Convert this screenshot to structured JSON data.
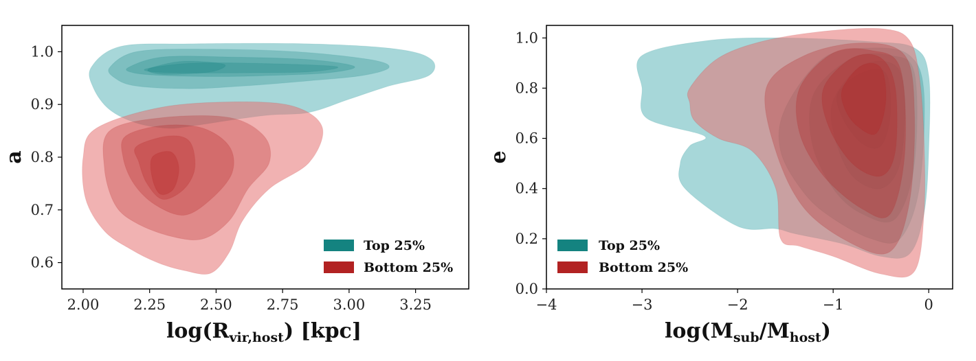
{
  "chart_data": [
    {
      "type": "contour",
      "title": "",
      "xlabel": "log(R_vir,host) [kpc]",
      "ylabel": "a",
      "xlim": [
        1.92,
        3.45
      ],
      "ylim": [
        0.55,
        1.05
      ],
      "xticks": [
        2.0,
        2.25,
        2.5,
        2.75,
        3.0,
        3.25
      ],
      "xtick_labels": [
        "2.00",
        "2.25",
        "2.50",
        "2.75",
        "3.00",
        "3.25"
      ],
      "yticks": [
        0.6,
        0.7,
        0.8,
        0.9,
        1.0
      ],
      "ytick_labels": [
        "0.6",
        "0.7",
        "0.8",
        "0.9",
        "1.0"
      ],
      "grid": false,
      "legend_position": "bottom-right",
      "series": [
        {
          "name": "Top 25%",
          "color": "#148380",
          "fill": "#5fb6b9",
          "levels": [
            [
              [
                2.03,
                0.97
              ],
              [
                2.14,
                1.01
              ],
              [
                2.4,
                1.015
              ],
              [
                2.85,
                1.015
              ],
              [
                3.18,
                1.005
              ],
              [
                3.31,
                0.985
              ],
              [
                3.3,
                0.955
              ],
              [
                3.15,
                0.935
              ],
              [
                3.0,
                0.91
              ],
              [
                2.85,
                0.885
              ],
              [
                2.7,
                0.88
              ],
              [
                2.55,
                0.87
              ],
              [
                2.42,
                0.86
              ],
              [
                2.32,
                0.855
              ],
              [
                2.2,
                0.865
              ],
              [
                2.1,
                0.89
              ],
              [
                2.04,
                0.93
              ]
            ],
            [
              [
                2.1,
                0.97
              ],
              [
                2.2,
                1.0
              ],
              [
                2.45,
                1.005
              ],
              [
                2.8,
                1.0
              ],
              [
                3.08,
                0.985
              ],
              [
                3.15,
                0.97
              ],
              [
                3.05,
                0.955
              ],
              [
                2.85,
                0.945
              ],
              [
                2.6,
                0.935
              ],
              [
                2.4,
                0.93
              ],
              [
                2.2,
                0.935
              ],
              [
                2.12,
                0.95
              ]
            ],
            [
              [
                2.17,
                0.97
              ],
              [
                2.3,
                0.99
              ],
              [
                2.55,
                0.99
              ],
              [
                2.85,
                0.985
              ],
              [
                3.02,
                0.972
              ],
              [
                2.92,
                0.96
              ],
              [
                2.7,
                0.955
              ],
              [
                2.5,
                0.953
              ],
              [
                2.3,
                0.955
              ],
              [
                2.19,
                0.96
              ]
            ],
            [
              [
                2.24,
                0.968
              ],
              [
                2.4,
                0.978
              ],
              [
                2.65,
                0.978
              ],
              [
                2.95,
                0.972
              ],
              [
                2.85,
                0.962
              ],
              [
                2.6,
                0.96
              ],
              [
                2.38,
                0.96
              ],
              [
                2.26,
                0.962
              ]
            ],
            [
              [
                2.26,
                0.97
              ],
              [
                2.38,
                0.982
              ],
              [
                2.53,
                0.976
              ],
              [
                2.48,
                0.962
              ],
              [
                2.32,
                0.957
              ],
              [
                2.25,
                0.962
              ]
            ]
          ]
        },
        {
          "name": "Bottom 25%",
          "color": "#b22222",
          "fill": "#e57373",
          "levels": [
            [
              [
                2.05,
                0.855
              ],
              [
                2.3,
                0.895
              ],
              [
                2.6,
                0.905
              ],
              [
                2.8,
                0.895
              ],
              [
                2.9,
                0.855
              ],
              [
                2.85,
                0.79
              ],
              [
                2.7,
                0.74
              ],
              [
                2.6,
                0.68
              ],
              [
                2.55,
                0.62
              ],
              [
                2.48,
                0.58
              ],
              [
                2.38,
                0.585
              ],
              [
                2.28,
                0.6
              ],
              [
                2.18,
                0.625
              ],
              [
                2.08,
                0.66
              ],
              [
                2.01,
                0.72
              ],
              [
                2.0,
                0.8
              ]
            ],
            [
              [
                2.1,
                0.85
              ],
              [
                2.3,
                0.875
              ],
              [
                2.55,
                0.875
              ],
              [
                2.68,
                0.84
              ],
              [
                2.7,
                0.79
              ],
              [
                2.62,
                0.74
              ],
              [
                2.55,
                0.68
              ],
              [
                2.45,
                0.645
              ],
              [
                2.33,
                0.65
              ],
              [
                2.2,
                0.675
              ],
              [
                2.12,
                0.71
              ],
              [
                2.08,
                0.78
              ]
            ],
            [
              [
                2.16,
                0.84
              ],
              [
                2.3,
                0.86
              ],
              [
                2.45,
                0.855
              ],
              [
                2.55,
                0.82
              ],
              [
                2.56,
                0.77
              ],
              [
                2.48,
                0.72
              ],
              [
                2.38,
                0.69
              ],
              [
                2.27,
                0.71
              ],
              [
                2.19,
                0.75
              ],
              [
                2.15,
                0.8
              ]
            ],
            [
              [
                2.2,
                0.82
              ],
              [
                2.32,
                0.84
              ],
              [
                2.4,
                0.83
              ],
              [
                2.42,
                0.78
              ],
              [
                2.38,
                0.74
              ],
              [
                2.3,
                0.72
              ],
              [
                2.24,
                0.75
              ],
              [
                2.21,
                0.79
              ]
            ],
            [
              [
                2.26,
                0.8
              ],
              [
                2.33,
                0.81
              ],
              [
                2.36,
                0.78
              ],
              [
                2.34,
                0.74
              ],
              [
                2.29,
                0.73
              ],
              [
                2.26,
                0.76
              ]
            ]
          ]
        }
      ]
    },
    {
      "type": "contour",
      "title": "",
      "xlabel": "log(M_sub/M_host)",
      "ylabel": "e",
      "xlim": [
        -4.0,
        0.25
      ],
      "ylim": [
        0.0,
        1.05
      ],
      "xticks": [
        -4,
        -3,
        -2,
        -1,
        0
      ],
      "xtick_labels": [
        "−4",
        "−3",
        "−2",
        "−1",
        "0"
      ],
      "yticks": [
        0.0,
        0.2,
        0.4,
        0.6,
        0.8,
        1.0
      ],
      "ytick_labels": [
        "0.0",
        "0.2",
        "0.4",
        "0.6",
        "0.8",
        "1.0"
      ],
      "grid": false,
      "legend_position": "bottom-left",
      "series": [
        {
          "name": "Top 25%",
          "color": "#148380",
          "fill": "#5fb6b9",
          "levels": [
            [
              [
                -3.0,
                0.93
              ],
              [
                -2.3,
                0.99
              ],
              [
                -1.5,
                1.0
              ],
              [
                -0.6,
                0.985
              ],
              [
                -0.15,
                0.96
              ],
              [
                0.0,
                0.85
              ],
              [
                0.0,
                0.55
              ],
              [
                -0.05,
                0.3
              ],
              [
                -0.2,
                0.14
              ],
              [
                -0.5,
                0.13
              ],
              [
                -0.9,
                0.18
              ],
              [
                -1.4,
                0.22
              ],
              [
                -1.6,
                0.24
              ],
              [
                -2.0,
                0.25
              ],
              [
                -2.55,
                0.4
              ],
              [
                -2.6,
                0.5
              ],
              [
                -2.5,
                0.57
              ],
              [
                -2.35,
                0.61
              ],
              [
                -2.95,
                0.68
              ],
              [
                -3.0,
                0.8
              ]
            ],
            [
              [
                -1.5,
                0.72
              ],
              [
                -1.1,
                0.92
              ],
              [
                -0.6,
                0.96
              ],
              [
                -0.2,
                0.93
              ],
              [
                -0.05,
                0.78
              ],
              [
                -0.1,
                0.4
              ],
              [
                -0.3,
                0.2
              ],
              [
                -0.6,
                0.2
              ],
              [
                -1.0,
                0.28
              ],
              [
                -1.3,
                0.38
              ],
              [
                -1.55,
                0.55
              ]
            ],
            [
              [
                -1.2,
                0.78
              ],
              [
                -0.8,
                0.92
              ],
              [
                -0.4,
                0.93
              ],
              [
                -0.15,
                0.86
              ],
              [
                -0.15,
                0.5
              ],
              [
                -0.35,
                0.28
              ],
              [
                -0.7,
                0.3
              ],
              [
                -1.0,
                0.4
              ],
              [
                -1.22,
                0.58
              ]
            ],
            [
              [
                -1.0,
                0.75
              ],
              [
                -0.7,
                0.89
              ],
              [
                -0.35,
                0.89
              ],
              [
                -0.25,
                0.75
              ],
              [
                -0.3,
                0.5
              ],
              [
                -0.5,
                0.4
              ],
              [
                -0.8,
                0.45
              ],
              [
                -0.98,
                0.6
              ]
            ],
            [
              [
                -0.95,
                0.78
              ],
              [
                -0.7,
                0.86
              ],
              [
                -0.45,
                0.86
              ],
              [
                -0.4,
                0.7
              ],
              [
                -0.5,
                0.57
              ],
              [
                -0.7,
                0.58
              ],
              [
                -0.9,
                0.68
              ]
            ]
          ]
        },
        {
          "name": "Bottom 25%",
          "color": "#b22222",
          "fill": "#e57373",
          "levels": [
            [
              [
                -2.5,
                0.8
              ],
              [
                -2.2,
                0.92
              ],
              [
                -1.7,
                0.99
              ],
              [
                -1.0,
                1.03
              ],
              [
                -0.45,
                1.035
              ],
              [
                -0.2,
                0.99
              ],
              [
                -0.1,
                0.85
              ],
              [
                -0.05,
                0.6
              ],
              [
                -0.05,
                0.3
              ],
              [
                -0.15,
                0.07
              ],
              [
                -0.5,
                0.06
              ],
              [
                -1.0,
                0.13
              ],
              [
                -1.35,
                0.17
              ],
              [
                -1.55,
                0.2
              ],
              [
                -1.6,
                0.4
              ],
              [
                -1.85,
                0.55
              ],
              [
                -2.2,
                0.6
              ],
              [
                -2.45,
                0.67
              ],
              [
                -2.5,
                0.74
              ]
            ],
            [
              [
                -1.7,
                0.8
              ],
              [
                -1.3,
                0.93
              ],
              [
                -0.7,
                0.98
              ],
              [
                -0.25,
                0.93
              ],
              [
                -0.15,
                0.7
              ],
              [
                -0.2,
                0.35
              ],
              [
                -0.4,
                0.15
              ],
              [
                -0.8,
                0.18
              ],
              [
                -1.3,
                0.32
              ],
              [
                -1.6,
                0.55
              ]
            ],
            [
              [
                -1.35,
                0.8
              ],
              [
                -1.0,
                0.94
              ],
              [
                -0.6,
                0.95
              ],
              [
                -0.3,
                0.88
              ],
              [
                -0.25,
                0.55
              ],
              [
                -0.4,
                0.3
              ],
              [
                -0.7,
                0.32
              ],
              [
                -1.1,
                0.45
              ],
              [
                -1.35,
                0.62
              ]
            ],
            [
              [
                -1.1,
                0.8
              ],
              [
                -0.8,
                0.92
              ],
              [
                -0.5,
                0.92
              ],
              [
                -0.35,
                0.8
              ],
              [
                -0.35,
                0.55
              ],
              [
                -0.5,
                0.45
              ],
              [
                -0.8,
                0.5
              ],
              [
                -1.05,
                0.65
              ]
            ],
            [
              [
                -0.9,
                0.8
              ],
              [
                -0.7,
                0.89
              ],
              [
                -0.5,
                0.88
              ],
              [
                -0.45,
                0.75
              ],
              [
                -0.55,
                0.62
              ],
              [
                -0.75,
                0.65
              ],
              [
                -0.88,
                0.72
              ]
            ]
          ]
        }
      ]
    }
  ]
}
